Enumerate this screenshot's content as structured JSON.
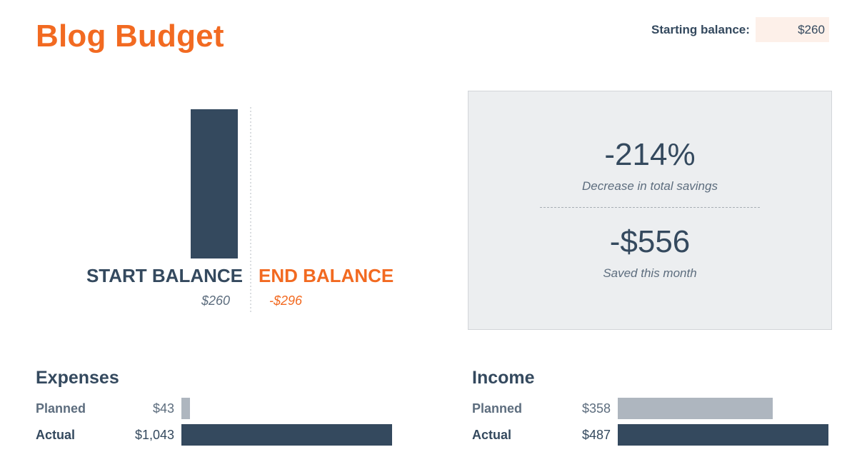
{
  "header": {
    "title": "Blog Budget",
    "starting_balance_label": "Starting balance:",
    "starting_balance_value": "$260"
  },
  "colors": {
    "accent": "#f26a21",
    "dark": "#34495e",
    "planned_bar": "#aeb6bf",
    "actual_bar": "#34495e",
    "panel_bg": "#eceef0"
  },
  "summary": {
    "percent": "-214%",
    "percent_label": "Decrease in total savings",
    "saved": "-$556",
    "saved_label": "Saved this month"
  },
  "chart_data": [
    {
      "type": "bar",
      "categories": [
        "START BALANCE",
        "END BALANCE"
      ],
      "values": [
        260,
        -296
      ],
      "value_labels": [
        "$260",
        "-$296"
      ],
      "ylim": [
        0,
        260
      ],
      "grid": false,
      "legend": false
    },
    {
      "type": "bar",
      "orientation": "horizontal",
      "title": "Expenses",
      "categories": [
        "Planned",
        "Actual"
      ],
      "values": [
        43,
        1043
      ],
      "value_labels": [
        "$43",
        "$1,043"
      ],
      "xlim": [
        0,
        1043
      ]
    },
    {
      "type": "bar",
      "orientation": "horizontal",
      "title": "Income",
      "categories": [
        "Planned",
        "Actual"
      ],
      "values": [
        358,
        487
      ],
      "value_labels": [
        "$358",
        "$487"
      ],
      "xlim": [
        0,
        487
      ]
    }
  ]
}
